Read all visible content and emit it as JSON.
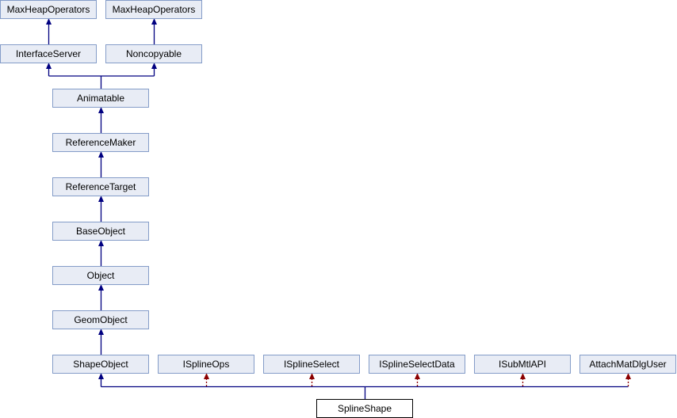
{
  "nodes": {
    "maxheap1": "MaxHeapOperators",
    "maxheap2": "MaxHeapOperators",
    "interfaceserver": "InterfaceServer",
    "noncopyable": "Noncopyable",
    "animatable": "Animatable",
    "referencemaker": "ReferenceMaker",
    "referencetarget": "ReferenceTarget",
    "baseobject": "BaseObject",
    "object": "Object",
    "geomobject": "GeomObject",
    "shapeobject": "ShapeObject",
    "isplineops": "ISplineOps",
    "isplineselect": "ISplineSelect",
    "isplineselectdata": "ISplineSelectData",
    "isubmtlapi": "ISubMtlAPI",
    "attachmatdlguser": "AttachMatDlgUser",
    "splineshape": "SplineShape"
  },
  "colors": {
    "public_inheritance": "#000080",
    "protected_inheritance": "#8b0000",
    "node_fill": "#e8ecf5",
    "node_border": "#849cc8"
  }
}
